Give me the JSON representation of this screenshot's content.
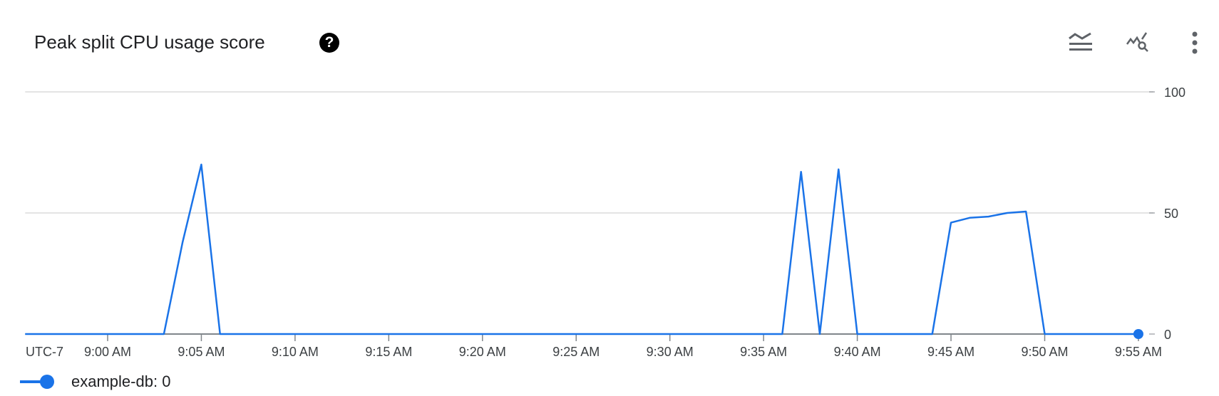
{
  "header": {
    "title": "Peak split CPU usage score",
    "help_icon": "help-circle-icon",
    "help_glyph": "?",
    "actions": [
      {
        "name": "legend-toggle-icon"
      },
      {
        "name": "explore-chart-icon"
      },
      {
        "name": "more-options-icon"
      }
    ]
  },
  "chart_data": {
    "type": "line",
    "title": "Peak split CPU usage score",
    "timezone_label": "UTC-7",
    "x_ticks": [
      "9:00 AM",
      "9:05 AM",
      "9:10 AM",
      "9:15 AM",
      "9:20 AM",
      "9:25 AM",
      "9:30 AM",
      "9:35 AM",
      "9:40 AM",
      "9:45 AM",
      "9:50 AM",
      "9:55 AM"
    ],
    "y_ticks": [
      0,
      50,
      100
    ],
    "ylim": [
      0,
      100
    ],
    "xlim": [
      "8:55:36",
      "9:56:30"
    ],
    "grid": true,
    "legend": "bottom-left",
    "color": "#1a73e8",
    "series": [
      {
        "name": "example-db",
        "points": [
          [
            "8:55:36",
            0
          ],
          [
            "9:03",
            0
          ],
          [
            "9:04",
            38
          ],
          [
            "9:05",
            70
          ],
          [
            "9:06",
            0
          ],
          [
            "9:36",
            0
          ],
          [
            "9:37",
            67
          ],
          [
            "9:38",
            0
          ],
          [
            "9:39",
            68
          ],
          [
            "9:40",
            0
          ],
          [
            "9:44",
            0
          ],
          [
            "9:45",
            46
          ],
          [
            "9:46",
            48
          ],
          [
            "9:47",
            48.5
          ],
          [
            "9:48",
            50
          ],
          [
            "9:49",
            50.6
          ],
          [
            "9:50",
            0
          ],
          [
            "9:55",
            0
          ]
        ]
      }
    ]
  },
  "legend": {
    "series_name": "example-db:",
    "current_value": "0"
  }
}
